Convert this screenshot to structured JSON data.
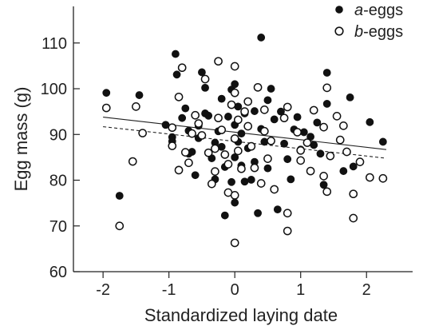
{
  "chart_data": {
    "type": "scatter",
    "xlabel": "Standardized laying date",
    "ylabel": "Egg mass (g)",
    "xlim": [
      -2.45,
      2.7
    ],
    "ylim": [
      60,
      118
    ],
    "xticks": [
      -2,
      -1,
      0,
      1,
      2
    ],
    "yticks": [
      60,
      70,
      80,
      90,
      100,
      110
    ],
    "legend_position": "top-right",
    "series": [
      {
        "name": "a-eggs",
        "marker": "filled-circle",
        "color": "#111111",
        "trendline": {
          "x": [
            -2,
            2.3
          ],
          "y": [
            93.8,
            86.7
          ],
          "style": "solid"
        },
        "points": [
          [
            -1.95,
            99.1
          ],
          [
            -1.75,
            76.6
          ],
          [
            -1.45,
            98.6
          ],
          [
            -1.05,
            92.1
          ],
          [
            -0.95,
            89.4
          ],
          [
            -0.95,
            88.5
          ],
          [
            -0.9,
            107.6
          ],
          [
            -0.88,
            103.1
          ],
          [
            -0.85,
            82.3
          ],
          [
            -0.8,
            93.6
          ],
          [
            -0.75,
            95.7
          ],
          [
            -0.7,
            90.8
          ],
          [
            -0.65,
            86.2
          ],
          [
            -0.6,
            81.1
          ],
          [
            -0.55,
            91.9
          ],
          [
            -0.55,
            89.2
          ],
          [
            -0.5,
            103.6
          ],
          [
            -0.45,
            100.2
          ],
          [
            -0.4,
            94.1
          ],
          [
            -0.35,
            84.8
          ],
          [
            -0.3,
            80.2
          ],
          [
            -0.25,
            90.7
          ],
          [
            -0.2,
            97.8
          ],
          [
            -0.2,
            87.3
          ],
          [
            -0.15,
            82.9
          ],
          [
            -0.1,
            93.9
          ],
          [
            -0.05,
            99.8
          ],
          [
            -0.05,
            79.6
          ],
          [
            0.0,
            101.0
          ],
          [
            0.0,
            92.1
          ],
          [
            0.0,
            85.0
          ],
          [
            0.0,
            75.1
          ],
          [
            0.05,
            96.1
          ],
          [
            0.05,
            88.4
          ],
          [
            0.1,
            90.2
          ],
          [
            0.1,
            83.2
          ],
          [
            0.15,
            94.6
          ],
          [
            0.15,
            79.7
          ],
          [
            0.2,
            91.8
          ],
          [
            0.2,
            87.0
          ],
          [
            -0.15,
            72.3
          ],
          [
            0.3,
            95.1
          ],
          [
            0.3,
            84.0
          ],
          [
            0.35,
            72.8
          ],
          [
            0.4,
            111.2
          ],
          [
            0.4,
            91.2
          ],
          [
            0.45,
            88.4
          ],
          [
            0.5,
            82.6
          ],
          [
            0.5,
            97.5
          ],
          [
            0.55,
            100.0
          ],
          [
            0.6,
            93.3
          ],
          [
            0.7,
            95.0
          ],
          [
            0.75,
            88.0
          ],
          [
            0.8,
            84.6
          ],
          [
            0.85,
            80.2
          ],
          [
            0.9,
            91.1
          ],
          [
            1.0,
            86.7
          ],
          [
            1.05,
            90.5
          ],
          [
            1.15,
            89.5
          ],
          [
            1.2,
            87.7
          ],
          [
            1.25,
            92.6
          ],
          [
            1.3,
            85.8
          ],
          [
            1.35,
            79.0
          ],
          [
            1.4,
            96.7
          ],
          [
            1.4,
            103.5
          ],
          [
            1.6,
            88.8
          ],
          [
            1.65,
            82.0
          ],
          [
            1.75,
            98.1
          ],
          [
            1.8,
            83.0
          ],
          [
            2.05,
            92.7
          ],
          [
            2.25,
            88.4
          ],
          [
            0.65,
            73.6
          ],
          [
            -0.45,
            94.6
          ],
          [
            -0.3,
            88.2
          ],
          [
            0.25,
            80.1
          ],
          [
            0.95,
            93.8
          ],
          [
            -0.7,
            85.8
          ],
          [
            0.6,
            78.0
          ]
        ]
      },
      {
        "name": "b-eggs",
        "marker": "open-circle",
        "color": "#111111",
        "trendline": {
          "x": [
            -2,
            2.3
          ],
          "y": [
            91.7,
            84.8
          ],
          "style": "dashed"
        },
        "points": [
          [
            -1.95,
            95.8
          ],
          [
            -1.75,
            70.0
          ],
          [
            -1.55,
            84.1
          ],
          [
            -1.5,
            96.1
          ],
          [
            -1.4,
            90.3
          ],
          [
            -0.95,
            87.5
          ],
          [
            -0.95,
            91.5
          ],
          [
            -0.85,
            98.2
          ],
          [
            -0.85,
            82.2
          ],
          [
            -0.8,
            104.6
          ],
          [
            -0.75,
            86.1
          ],
          [
            -0.65,
            90.2
          ],
          [
            -0.55,
            92.4
          ],
          [
            -0.5,
            89.8
          ],
          [
            -0.45,
            102.1
          ],
          [
            -0.4,
            86.0
          ],
          [
            -0.35,
            79.2
          ],
          [
            -0.3,
            81.9
          ],
          [
            -0.25,
            106.0
          ],
          [
            -0.25,
            93.6
          ],
          [
            -0.2,
            91.0
          ],
          [
            -0.15,
            85.6
          ],
          [
            -0.1,
            77.3
          ],
          [
            -0.05,
            96.5
          ],
          [
            0.0,
            104.9
          ],
          [
            0.0,
            99.1
          ],
          [
            0.0,
            89.1
          ],
          [
            0.0,
            76.7
          ],
          [
            0.0,
            66.3
          ],
          [
            0.05,
            93.2
          ],
          [
            0.05,
            86.4
          ],
          [
            0.1,
            82.5
          ],
          [
            0.15,
            95.0
          ],
          [
            0.2,
            91.8
          ],
          [
            0.25,
            87.4
          ],
          [
            0.3,
            82.7
          ],
          [
            0.35,
            100.3
          ],
          [
            0.4,
            79.3
          ],
          [
            0.45,
            90.7
          ],
          [
            0.5,
            84.7
          ],
          [
            0.6,
            78.0
          ],
          [
            0.75,
            93.6
          ],
          [
            0.8,
            96.0
          ],
          [
            0.8,
            72.8
          ],
          [
            0.8,
            68.9
          ],
          [
            0.95,
            90.5
          ],
          [
            1.0,
            86.5
          ],
          [
            1.0,
            84.3
          ],
          [
            1.1,
            88.2
          ],
          [
            1.2,
            95.3
          ],
          [
            1.35,
            91.6
          ],
          [
            1.4,
            77.5
          ],
          [
            1.4,
            100.2
          ],
          [
            1.45,
            85.3
          ],
          [
            1.55,
            94.0
          ],
          [
            1.65,
            91.9
          ],
          [
            1.7,
            86.2
          ],
          [
            1.8,
            77.0
          ],
          [
            1.8,
            71.7
          ],
          [
            1.9,
            84.0
          ],
          [
            2.05,
            80.6
          ],
          [
            2.25,
            80.4
          ],
          [
            -0.6,
            94.2
          ],
          [
            -0.3,
            86.9
          ],
          [
            0.2,
            97.2
          ],
          [
            0.55,
            88.6
          ],
          [
            1.15,
            82.0
          ],
          [
            1.6,
            88.8
          ],
          [
            -0.1,
            83.5
          ],
          [
            0.45,
            95.4
          ],
          [
            -0.7,
            83.8
          ],
          [
            1.35,
            80.9
          ]
        ]
      }
    ]
  }
}
